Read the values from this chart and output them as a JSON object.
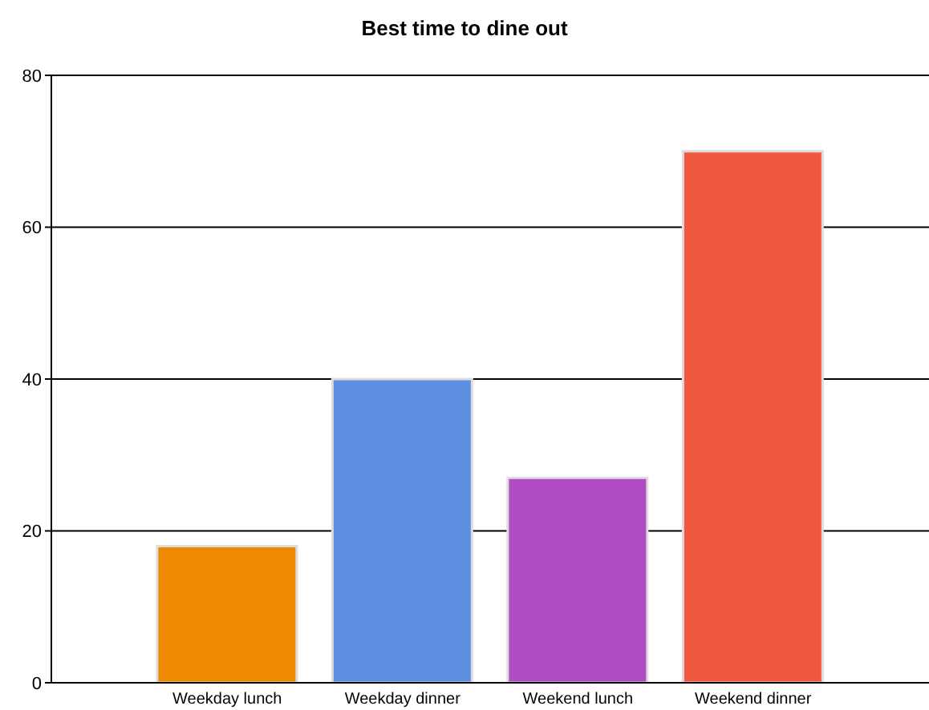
{
  "chart_data": {
    "type": "bar",
    "title": "Best time to dine out",
    "categories": [
      "Weekday lunch",
      "Weekday dinner",
      "Weekend lunch",
      "Weekend dinner"
    ],
    "values": [
      18,
      40,
      27,
      70
    ],
    "colors": [
      "#f08a00",
      "#5f8fe0",
      "#b04cc4",
      "#f0583f"
    ],
    "ylim": [
      0,
      80
    ],
    "yticks": [
      0,
      20,
      40,
      60,
      80
    ],
    "grid": "y"
  }
}
